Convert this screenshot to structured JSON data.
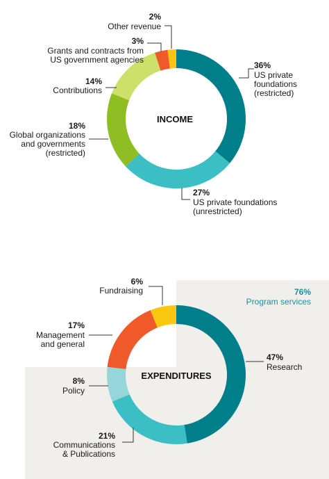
{
  "chart_data": [
    {
      "type": "pie",
      "center_label": "INCOME",
      "slices": [
        {
          "percent_label": "36%",
          "label_lines": [
            "US private",
            "foundations",
            "(restricted)"
          ],
          "value": 36,
          "color": "#007e8a"
        },
        {
          "percent_label": "27%",
          "label_lines": [
            "US private foundations",
            "(unrestricted)"
          ],
          "value": 27,
          "color": "#3bbfc4"
        },
        {
          "percent_label": "18%",
          "label_lines": [
            "Global organizations",
            "and governments",
            "(restricted)"
          ],
          "value": 18,
          "color": "#8fbd24"
        },
        {
          "percent_label": "14%",
          "label_lines": [
            "Contributions"
          ],
          "value": 14,
          "color": "#cde06a"
        },
        {
          "percent_label": "3%",
          "label_lines": [
            "Grants and contracts from",
            "US government agencies"
          ],
          "value": 3,
          "color": "#f0592a"
        },
        {
          "percent_label": "2%",
          "label_lines": [
            "Other revenue"
          ],
          "value": 2,
          "color": "#f9c710"
        }
      ]
    },
    {
      "type": "pie",
      "center_label": "EXPENDITURES",
      "group": {
        "percent_label": "76%",
        "label": "Program services",
        "color": "#1a8f9a",
        "background": "#f1efec"
      },
      "slices": [
        {
          "percent_label": "47%",
          "label_lines": [
            "Research"
          ],
          "value": 47,
          "color": "#007e8a"
        },
        {
          "percent_label": "21%",
          "label_lines": [
            "Communications",
            "& Publications"
          ],
          "value": 21,
          "color": "#3bbfc4"
        },
        {
          "percent_label": "8%",
          "label_lines": [
            "Policy"
          ],
          "value": 8,
          "color": "#96d6da"
        },
        {
          "percent_label": "17%",
          "label_lines": [
            "Management",
            "and general"
          ],
          "value": 17,
          "color": "#f0592a"
        },
        {
          "percent_label": "6%",
          "label_lines": [
            "Fundraising"
          ],
          "value": 6,
          "color": "#f9c710"
        }
      ]
    }
  ]
}
